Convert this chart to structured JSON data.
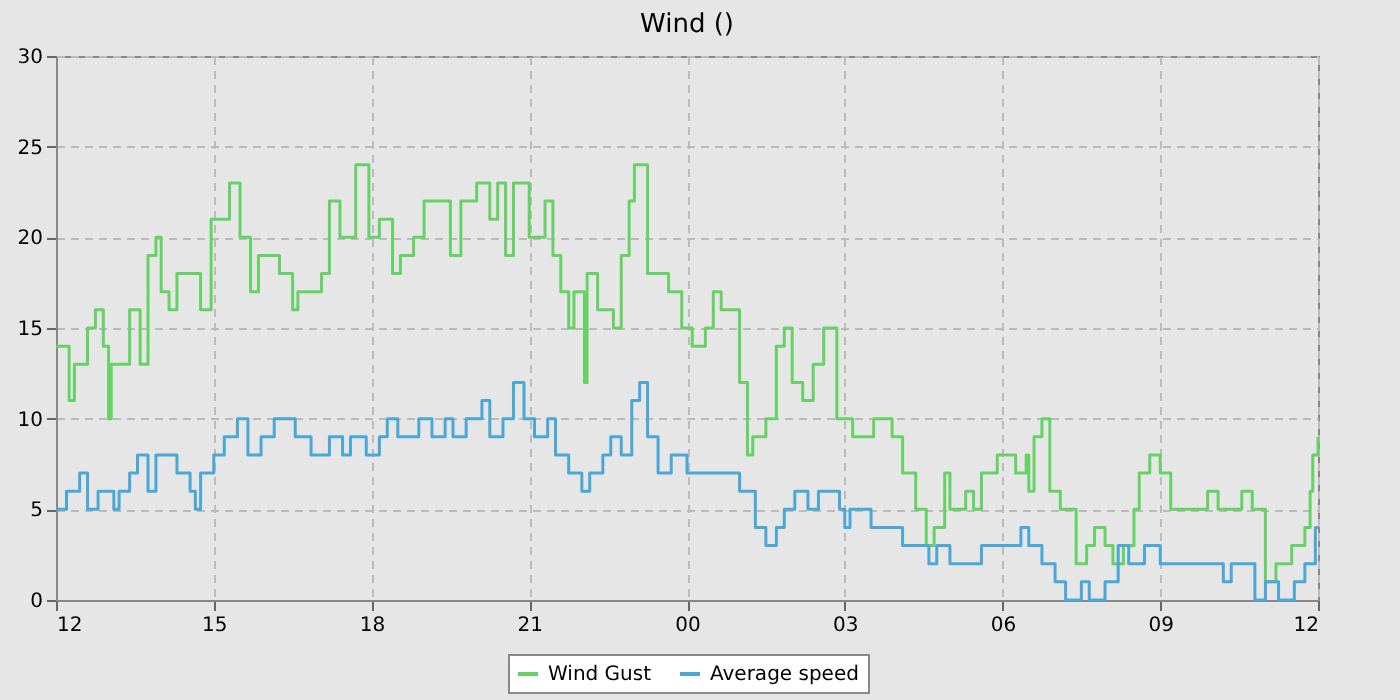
{
  "chart_data": {
    "type": "step",
    "title": "Wind ()",
    "xlim": [
      "--05-01T12:00",
      "--05-02T12:00"
    ],
    "ylim": [
      0,
      30
    ],
    "xticks": [
      {
        "value": "--05-01T12:00",
        "label": "12"
      },
      {
        "value": "--05-01T15:00",
        "label": "15"
      },
      {
        "value": "--05-01T18:00",
        "label": "18"
      },
      {
        "value": "--05-01T21:00",
        "label": "21"
      },
      {
        "value": "--05-02T00:00",
        "label": "00"
      },
      {
        "value": "--05-02T03:00",
        "label": "03"
      },
      {
        "value": "--05-02T06:00",
        "label": "06"
      },
      {
        "value": "--05-02T09:00",
        "label": "09"
      },
      {
        "value": "--05-02T12:00",
        "label": "12"
      }
    ],
    "yticks": [
      0,
      5,
      10,
      15,
      20,
      25,
      30
    ],
    "grid": true,
    "legend": "bottom",
    "line_style": "solid",
    "series": [
      {
        "name": "Wind Gust",
        "color": "#66d266",
        "x": [
          "--05-01T12:00",
          "--05-01T12:15",
          "--05-01T12:21",
          "--05-01T12:36",
          "--05-01T12:45",
          "--05-01T12:54",
          "--05-01T13:00",
          "--05-01T13:03",
          "--05-01T13:24",
          "--05-01T13:36",
          "--05-01T13:45",
          "--05-01T13:54",
          "--05-01T14:00",
          "--05-01T14:09",
          "--05-01T14:18",
          "--05-01T14:45",
          "--05-01T14:57",
          "--05-01T15:18",
          "--05-01T15:30",
          "--05-01T15:42",
          "--05-01T15:51",
          "--05-01T16:15",
          "--05-01T16:30",
          "--05-01T16:36",
          "--05-01T17:03",
          "--05-01T17:12",
          "--05-01T17:24",
          "--05-01T17:33",
          "--05-01T17:42",
          "--05-01T17:57",
          "--05-01T18:09",
          "--05-01T18:24",
          "--05-01T18:33",
          "--05-01T18:48",
          "--05-01T19:00",
          "--05-01T19:30",
          "--05-01T19:42",
          "--05-01T20:00",
          "--05-01T20:15",
          "--05-01T20:24",
          "--05-01T20:33",
          "--05-01T20:42",
          "--05-01T21:00",
          "--05-01T21:18",
          "--05-01T21:27",
          "--05-01T21:36",
          "--05-01T21:45",
          "--05-01T21:51",
          "--05-01T22:03",
          "--05-01T22:06",
          "--05-01T22:18",
          "--05-01T22:36",
          "--05-01T22:45",
          "--05-01T22:54",
          "--05-01T23:00",
          "--05-01T23:15",
          "--05-01T23:39",
          "--05-01T23:54",
          "--05-02T00:06",
          "--05-02T00:21",
          "--05-02T00:30",
          "--05-02T00:39",
          "--05-02T01:00",
          "--05-02T01:09",
          "--05-02T01:15",
          "--05-02T01:30",
          "--05-02T01:42",
          "--05-02T01:51",
          "--05-02T02:00",
          "--05-02T02:12",
          "--05-02T02:24",
          "--05-02T02:36",
          "--05-02T02:51",
          "--05-02T03:09",
          "--05-02T03:33",
          "--05-02T03:54",
          "--05-02T04:06",
          "--05-02T04:21",
          "--05-02T04:33",
          "--05-02T04:42",
          "--05-02T04:54",
          "--05-02T05:00",
          "--05-02T05:18",
          "--05-02T05:27",
          "--05-02T05:36",
          "--05-02T05:54",
          "--05-02T06:15",
          "--05-02T06:27",
          "--05-02T06:30",
          "--05-02T06:36",
          "--05-02T06:45",
          "--05-02T06:54",
          "--05-02T07:06",
          "--05-02T07:24",
          "--05-02T07:36",
          "--05-02T07:45",
          "--05-02T07:57",
          "--05-02T08:06",
          "--05-02T08:18",
          "--05-02T08:30",
          "--05-02T08:36",
          "--05-02T08:48",
          "--05-02T09:00",
          "--05-02T09:12",
          "--05-02T09:54",
          "--05-02T10:06",
          "--05-02T10:33",
          "--05-02T10:45",
          "--05-02T11:00",
          "--05-02T11:12",
          "--05-02T11:30",
          "--05-02T11:45",
          "--05-02T11:51",
          "--05-02T11:54",
          "--05-02T12:00"
        ],
        "values": [
          14,
          11,
          13,
          15,
          16,
          14,
          10,
          13,
          16,
          13,
          19,
          20,
          17,
          16,
          18,
          16,
          21,
          23,
          20,
          17,
          19,
          18,
          16,
          17,
          18,
          22,
          20,
          20,
          24,
          20,
          21,
          18,
          19,
          20,
          22,
          19,
          22,
          23,
          21,
          23,
          19,
          23,
          20,
          22,
          19,
          17,
          15,
          17,
          12,
          18,
          16,
          15,
          19,
          22,
          24,
          18,
          17,
          15,
          14,
          15,
          17,
          16,
          12,
          8,
          9,
          10,
          14,
          15,
          12,
          11,
          13,
          15,
          10,
          9,
          10,
          9,
          7,
          5,
          3,
          4,
          7,
          5,
          6,
          5,
          7,
          8,
          7,
          8,
          6,
          9,
          10,
          6,
          5,
          2,
          3,
          4,
          3,
          2,
          3,
          5,
          7,
          8,
          7,
          5,
          6,
          5,
          6,
          5,
          1,
          2,
          3,
          4,
          6,
          8,
          9
        ]
      },
      {
        "name": "Average speed",
        "color": "#4aa8d8",
        "x": [
          "--05-01T12:00",
          "--05-01T12:12",
          "--05-01T12:27",
          "--05-01T12:36",
          "--05-01T12:48",
          "--05-01T13:06",
          "--05-01T13:12",
          "--05-01T13:24",
          "--05-01T13:33",
          "--05-01T13:45",
          "--05-01T13:54",
          "--05-01T14:18",
          "--05-01T14:33",
          "--05-01T14:39",
          "--05-01T14:45",
          "--05-01T15:00",
          "--05-01T15:12",
          "--05-01T15:27",
          "--05-01T15:39",
          "--05-01T15:54",
          "--05-01T16:09",
          "--05-01T16:33",
          "--05-01T16:51",
          "--05-01T17:12",
          "--05-01T17:27",
          "--05-01T17:36",
          "--05-01T17:54",
          "--05-01T18:09",
          "--05-01T18:18",
          "--05-01T18:30",
          "--05-01T18:54",
          "--05-01T19:09",
          "--05-01T19:24",
          "--05-01T19:33",
          "--05-01T19:48",
          "--05-01T20:06",
          "--05-01T20:15",
          "--05-01T20:30",
          "--05-01T20:42",
          "--05-01T20:54",
          "--05-01T21:06",
          "--05-01T21:21",
          "--05-01T21:30",
          "--05-01T21:45",
          "--05-01T22:00",
          "--05-01T22:09",
          "--05-01T22:24",
          "--05-01T22:33",
          "--05-01T22:45",
          "--05-01T22:57",
          "--05-01T23:06",
          "--05-01T23:15",
          "--05-01T23:27",
          "--05-01T23:42",
          "--05-02T00:00",
          "--05-02T01:00",
          "--05-02T01:18",
          "--05-02T01:30",
          "--05-02T01:42",
          "--05-02T01:51",
          "--05-02T02:03",
          "--05-02T02:18",
          "--05-02T02:30",
          "--05-02T02:54",
          "--05-02T03:00",
          "--05-02T03:06",
          "--05-02T03:30",
          "--05-02T04:06",
          "--05-02T04:36",
          "--05-02T04:45",
          "--05-02T05:00",
          "--05-02T05:36",
          "--05-02T06:21",
          "--05-02T06:30",
          "--05-02T06:45",
          "--05-02T07:00",
          "--05-02T07:12",
          "--05-02T07:30",
          "--05-02T07:39",
          "--05-02T07:57",
          "--05-02T08:12",
          "--05-02T08:24",
          "--05-02T08:42",
          "--05-02T09:00",
          "--05-02T10:12",
          "--05-02T10:21",
          "--05-02T10:48",
          "--05-02T11:00",
          "--05-02T11:15",
          "--05-02T11:33",
          "--05-02T11:45",
          "--05-02T11:57",
          "--05-02T12:00"
        ],
        "values": [
          5,
          6,
          7,
          5,
          6,
          5,
          6,
          7,
          8,
          6,
          8,
          7,
          6,
          5,
          7,
          8,
          9,
          10,
          8,
          9,
          10,
          9,
          8,
          9,
          8,
          9,
          8,
          9,
          10,
          9,
          10,
          9,
          10,
          9,
          10,
          11,
          9,
          10,
          12,
          10,
          9,
          10,
          8,
          7,
          6,
          7,
          8,
          9,
          8,
          11,
          12,
          9,
          7,
          8,
          7,
          6,
          4,
          3,
          4,
          5,
          6,
          5,
          6,
          5,
          4,
          5,
          4,
          3,
          2,
          3,
          2,
          3,
          4,
          3,
          2,
          1,
          0,
          1,
          0,
          1,
          3,
          2,
          3,
          2,
          1,
          2,
          0,
          1,
          0,
          1,
          2,
          4,
          4
        ]
      }
    ]
  }
}
